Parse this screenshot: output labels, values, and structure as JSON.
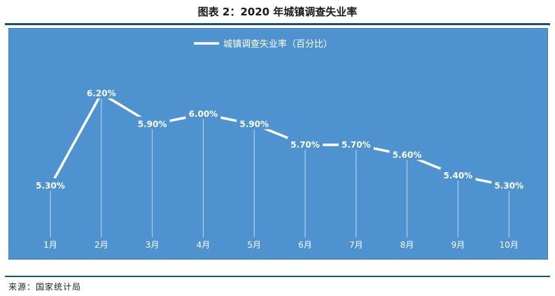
{
  "figure": {
    "title": "图表 2：2020 年城镇调查失业率",
    "source": "来源：国家统计局"
  },
  "colors": {
    "plot_background": "#4f92d0",
    "line": "#ffffff",
    "drop_line": "#e8f1fa",
    "rule": "#1f4e79"
  },
  "chart_data": {
    "type": "line",
    "title": "",
    "legend": {
      "label": "城镇调查失业率（百分比）",
      "position": "top-center"
    },
    "categories": [
      "1月",
      "2月",
      "3月",
      "4月",
      "5月",
      "6月",
      "7月",
      "8月",
      "9月",
      "10月"
    ],
    "series": [
      {
        "name": "城镇调查失业率（百分比）",
        "values": [
          5.3,
          6.2,
          5.9,
          6.0,
          5.9,
          5.7,
          5.7,
          5.6,
          5.4,
          5.3
        ],
        "labels": [
          "5.30%",
          "6.20%",
          "5.90%",
          "6.00%",
          "5.90%",
          "5.70%",
          "5.70%",
          "5.60%",
          "5.40%",
          "5.30%"
        ]
      }
    ],
    "ylim": [
      4.8,
      6.45
    ],
    "xlabel": "",
    "ylabel": "",
    "grid": false,
    "drop_lines": true
  }
}
